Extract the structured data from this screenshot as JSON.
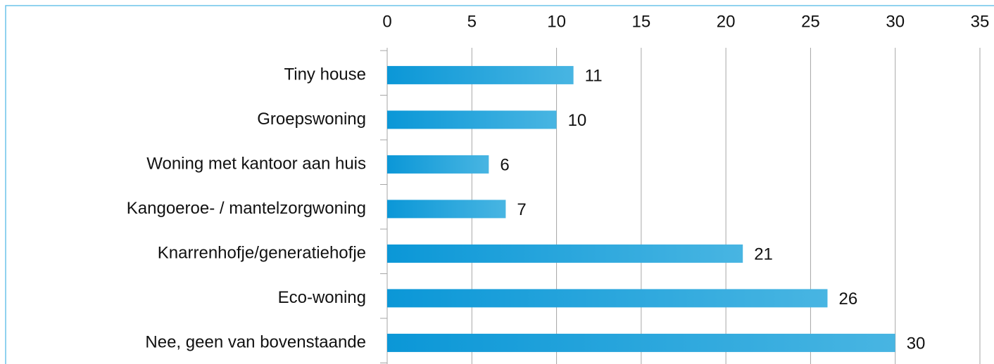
{
  "chart_data": {
    "type": "bar",
    "orientation": "horizontal",
    "categories": [
      "Tiny house",
      "Groepswoning",
      "Woning met kantoor aan huis",
      "Kangoeroe- / mantelzorgwoning",
      "Knarrenhofje/generatiehofje",
      "Eco-woning",
      "Nee, geen van bovenstaande"
    ],
    "values": [
      11,
      10,
      6,
      7,
      21,
      26,
      30
    ],
    "color": "#0b97d7",
    "xlim": [
      0,
      35
    ],
    "xticks": [
      0,
      5,
      10,
      15,
      20,
      25,
      30,
      35
    ],
    "grid": true
  }
}
